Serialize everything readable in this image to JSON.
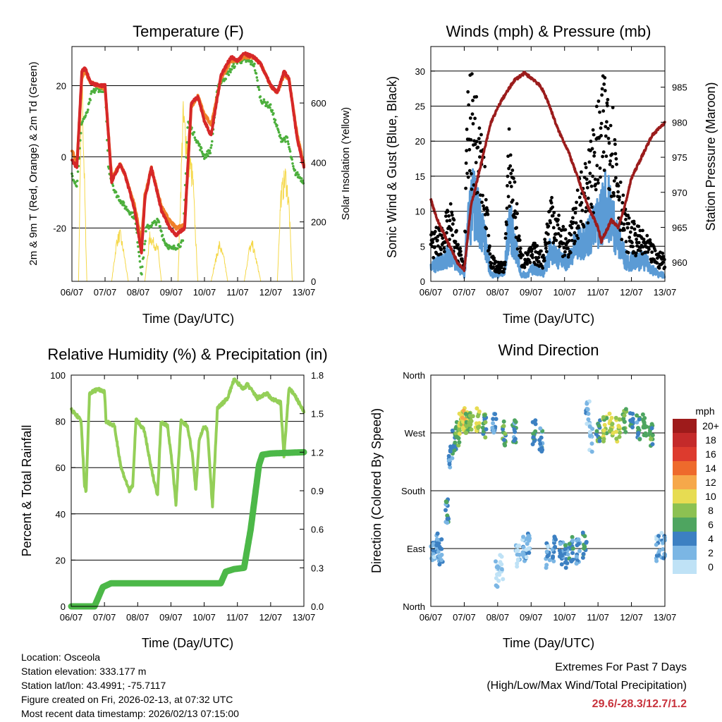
{
  "colors": {
    "temp2m": "#d62728",
    "temp9m": "#f07f28",
    "dewpoint": "#4caf3c",
    "solar": "#f5d84a",
    "gust": "#000000",
    "sonic": "#5b9bd5",
    "pressure": "#9b1c1c",
    "rh": "#94cf58",
    "precip": "#4cb848",
    "extremes": "#c8323c"
  },
  "icons": {
    "scatter_marker": "filled-circle"
  },
  "footer": {
    "location": "Location: Osceola",
    "elevation": "Station elevation: 333.177 m",
    "latlon": "Station lat/lon: 43.4991; -75.7117",
    "created": "Figure created on Fri, 2026-02-13, at 07:32 UTC",
    "recent": "Most recent data timestamp: 2026/02/13 07:15:00"
  },
  "extremes": {
    "title": "Extremes For Past 7 Days",
    "subtitle": "(High/Low/Max Wind/Total Precipitation)",
    "values": "29.6/-28.3/12.7/1.2"
  },
  "chart_data": [
    {
      "id": "temp",
      "type": "line",
      "title": "Temperature (F)",
      "xlabel": "Time (Day/UTC)",
      "ylabel": "2m & 9m T (Red, Orange) & 2m Td (Green)",
      "y2label": "Solar Insolation (Yellow)",
      "xlim": [
        0,
        7
      ],
      "xticks": [
        "06/07",
        "07/07",
        "08/07",
        "09/07",
        "10/07",
        "11/07",
        "12/07",
        "13/07"
      ],
      "ylim": [
        -35,
        31
      ],
      "yticks": [
        -20,
        0,
        20
      ],
      "gridlines": [
        -20,
        0,
        20
      ],
      "y2lim": [
        0,
        790
      ],
      "y2ticks": [
        0,
        200,
        400,
        600
      ],
      "series": [
        {
          "name": "2m T",
          "style": "line",
          "x": [
            0,
            0.15,
            0.3,
            0.4,
            0.55,
            0.8,
            1.0,
            1.2,
            1.45,
            1.6,
            1.9,
            2.1,
            2.2,
            2.4,
            2.7,
            2.95,
            3.15,
            3.4,
            3.6,
            3.8,
            4.0,
            4.2,
            4.5,
            4.8,
            5.0,
            5.2,
            5.5,
            5.7,
            6.0,
            6.2,
            6.4,
            6.55,
            6.8,
            7.0
          ],
          "values": [
            -1,
            -3,
            24,
            25,
            21,
            20,
            20,
            -7,
            -2,
            -5,
            -15,
            -27,
            -12,
            -3,
            -15,
            -20,
            -22,
            -20,
            15,
            17,
            10,
            6,
            23,
            28,
            27,
            29,
            28,
            26,
            20,
            18,
            24,
            22,
            5,
            -3
          ]
        },
        {
          "name": "9m T",
          "style": "line",
          "x": [
            0,
            0.15,
            0.3,
            0.4,
            0.55,
            0.8,
            1.0,
            1.2,
            1.45,
            1.6,
            1.9,
            2.1,
            2.2,
            2.4,
            2.7,
            2.95,
            3.15,
            3.4,
            3.6,
            3.8,
            4.0,
            4.2,
            4.5,
            4.8,
            5.0,
            5.2,
            5.5,
            5.7,
            6.0,
            6.2,
            6.4,
            6.55,
            6.8,
            7.0
          ],
          "values": [
            2,
            -2,
            22,
            24,
            21,
            20,
            19,
            -6,
            -2,
            -5,
            -14,
            -24,
            -11,
            -3,
            -14,
            -18,
            -20,
            -19,
            14,
            17,
            12,
            9,
            22,
            27,
            27,
            28,
            28,
            26,
            20,
            18,
            23,
            22,
            6,
            -2
          ]
        },
        {
          "name": "2m Td",
          "style": "line",
          "x": [
            0,
            0.15,
            0.3,
            0.45,
            0.6,
            0.75,
            1.0,
            1.1,
            1.3,
            1.6,
            1.9,
            2.1,
            2.25,
            2.6,
            2.8,
            3.0,
            3.2,
            3.35,
            3.5,
            3.7,
            4.0,
            4.2,
            4.4,
            4.6,
            5.0,
            5.3,
            5.5,
            5.7,
            6.0,
            6.3,
            6.5,
            6.7,
            6.9,
            7.0
          ],
          "values": [
            -5,
            -8,
            10,
            12,
            18,
            19,
            19,
            -3,
            -10,
            -14,
            -17,
            -33,
            -20,
            -18,
            -24,
            -26,
            -25,
            -24,
            10,
            6,
            0,
            2,
            20,
            22,
            27,
            27,
            26,
            16,
            14,
            5,
            5,
            -4,
            -6,
            -7
          ]
        },
        {
          "name": "Solar",
          "style": "filled",
          "axis": "y2",
          "x": [
            0,
            0.2,
            0.3,
            0.45,
            0.6,
            1.2,
            1.35,
            1.45,
            1.55,
            1.7,
            2.2,
            2.35,
            2.45,
            2.6,
            2.7,
            3.2,
            3.35,
            3.5,
            3.65,
            3.8,
            4.2,
            4.3,
            4.45,
            4.6,
            4.7,
            5.2,
            5.35,
            5.45,
            5.6,
            5.7,
            6.2,
            6.3,
            6.45,
            6.55,
            6.65,
            7.0
          ],
          "values": [
            0,
            0,
            790,
            0,
            0,
            0,
            150,
            180,
            120,
            0,
            0,
            170,
            150,
            120,
            0,
            0,
            620,
            500,
            380,
            0,
            0,
            60,
            140,
            80,
            0,
            0,
            120,
            140,
            60,
            0,
            0,
            320,
            400,
            290,
            0,
            0
          ]
        }
      ]
    },
    {
      "id": "wind",
      "type": "scatter",
      "title": "Winds (mph) & Pressure (mb)",
      "xlabel": "Time (Day/UTC)",
      "ylabel": "Sonic Wind & Gust (Blue, Black)",
      "y2label": "Station Pressure (Maroon)",
      "xlim": [
        0,
        7
      ],
      "xticks": [
        "06/07",
        "07/07",
        "08/07",
        "09/07",
        "10/07",
        "11/07",
        "12/07",
        "13/07"
      ],
      "ylim": [
        0,
        33.5
      ],
      "yticks": [
        0,
        5,
        10,
        15,
        20,
        25,
        30
      ],
      "gridlines": [
        5,
        10,
        15,
        20,
        25,
        30
      ],
      "y2lim": [
        957.3,
        990.8
      ],
      "y2ticks": [
        960,
        965,
        970,
        975,
        980,
        985
      ],
      "series": [
        {
          "name": "Gust",
          "style": "scatter",
          "x": [
            0,
            0.3,
            0.6,
            0.85,
            1.0,
            1.1,
            1.25,
            1.4,
            1.55,
            1.8,
            1.95,
            2.2,
            2.35,
            2.7,
            2.85,
            3.1,
            3.35,
            3.6,
            3.9,
            4.1,
            4.3,
            4.5,
            4.75,
            4.9,
            5.1,
            5.25,
            5.4,
            5.55,
            5.7,
            5.85,
            6.1,
            6.4,
            6.6,
            6.8,
            7.0
          ],
          "values": [
            5,
            6,
            8,
            4,
            2,
            20,
            22,
            18,
            15,
            3,
            2,
            2,
            17,
            3,
            3,
            4,
            3,
            10,
            6,
            5,
            8,
            12,
            14,
            17,
            20,
            23,
            20,
            16,
            10,
            7,
            6,
            5,
            4,
            3,
            3
          ]
        },
        {
          "name": "Sonic",
          "style": "scatter",
          "x": [
            0,
            0.3,
            0.6,
            0.85,
            1.0,
            1.1,
            1.25,
            1.4,
            1.55,
            1.8,
            1.95,
            2.2,
            2.35,
            2.7,
            2.85,
            3.1,
            3.35,
            3.6,
            3.9,
            4.1,
            4.3,
            4.5,
            4.75,
            4.9,
            5.1,
            5.25,
            5.4,
            5.55,
            5.7,
            5.85,
            6.1,
            6.4,
            6.6,
            6.8,
            7.0
          ],
          "values": [
            2,
            3,
            4,
            2,
            1,
            8,
            12,
            10,
            8,
            1,
            1,
            1,
            9,
            1,
            1,
            2,
            1,
            5,
            3,
            3,
            5,
            6,
            7,
            8,
            10,
            12,
            10,
            7,
            5,
            3,
            3,
            3,
            2,
            1,
            1
          ]
        },
        {
          "name": "Pressure",
          "style": "line",
          "axis": "y2",
          "x": [
            0,
            0.2,
            0.5,
            0.8,
            1.0,
            1.2,
            1.5,
            1.8,
            2.1,
            2.5,
            2.8,
            3.1,
            3.3,
            3.5,
            3.8,
            4.1,
            4.4,
            4.7,
            5.0,
            5.1,
            5.2,
            5.4,
            5.6,
            5.8,
            6.0,
            6.3,
            6.6,
            6.8,
            7.0
          ],
          "values": [
            969,
            966,
            963,
            960,
            959,
            968,
            974,
            980,
            983,
            986,
            987,
            986,
            985,
            983,
            979,
            976,
            972,
            968,
            965,
            963,
            964,
            966,
            965,
            968,
            972,
            975,
            978,
            979,
            980
          ]
        }
      ]
    },
    {
      "id": "rh",
      "type": "line",
      "title": "Relative Humidity (%) & Precipitation (in)",
      "xlabel": "Time (Day/UTC)",
      "ylabel": "Percent & Total Rainfall",
      "xlim": [
        0,
        7
      ],
      "xticks": [
        "06/07",
        "07/07",
        "08/07",
        "09/07",
        "10/07",
        "11/07",
        "12/07",
        "13/07"
      ],
      "ylim": [
        0,
        100
      ],
      "yticks": [
        0,
        20,
        40,
        60,
        80,
        100
      ],
      "gridlines": [
        20,
        40,
        60,
        80
      ],
      "y2lim": [
        0,
        1.8
      ],
      "y2ticks": [
        "0.0",
        "0.3",
        "0.6",
        "0.9",
        "1.2",
        "1.5",
        "1.8"
      ],
      "series": [
        {
          "name": "RH",
          "style": "line",
          "x": [
            0,
            0.2,
            0.3,
            0.4,
            0.45,
            0.55,
            0.8,
            1.0,
            1.05,
            1.3,
            1.5,
            1.75,
            1.85,
            1.95,
            2.2,
            2.4,
            2.6,
            2.7,
            2.9,
            3.05,
            3.15,
            3.3,
            3.5,
            3.65,
            3.75,
            3.85,
            4.0,
            4.1,
            4.25,
            4.4,
            4.5,
            4.7,
            4.9,
            5.2,
            5.3,
            5.6,
            5.9,
            6.0,
            6.3,
            6.4,
            6.55,
            6.7,
            6.85,
            7.0
          ],
          "values": [
            85,
            82,
            80,
            52,
            50,
            92,
            94,
            93,
            80,
            78,
            60,
            50,
            52,
            81,
            76,
            60,
            48,
            80,
            78,
            60,
            44,
            80,
            78,
            65,
            50,
            72,
            78,
            76,
            43,
            86,
            87,
            90,
            98,
            94,
            96,
            90,
            92,
            90,
            88,
            65,
            94,
            92,
            88,
            84
          ]
        },
        {
          "name": "Precip",
          "style": "line",
          "axis": "y2",
          "x": [
            0,
            0.7,
            0.95,
            1.2,
            2.5,
            4.5,
            4.65,
            4.9,
            5.2,
            5.3,
            5.4,
            5.55,
            5.65,
            5.75,
            6.0,
            7.0
          ],
          "values": [
            0,
            0,
            0.15,
            0.18,
            0.18,
            0.18,
            0.27,
            0.29,
            0.3,
            0.45,
            0.6,
            0.9,
            1.1,
            1.18,
            1.19,
            1.2
          ]
        }
      ]
    },
    {
      "id": "dir",
      "type": "scatter",
      "title": "Wind Direction",
      "xlabel": "Time (Day/UTC)",
      "ylabel": "Direction (Colored By Speed)",
      "xlim": [
        0,
        7
      ],
      "xticks": [
        "06/07",
        "07/07",
        "08/07",
        "09/07",
        "10/07",
        "11/07",
        "12/07",
        "13/07"
      ],
      "ylim": [
        0,
        360
      ],
      "ylabels": [
        "North",
        "East",
        "South",
        "West",
        "North"
      ],
      "yvalues": [
        0,
        90,
        180,
        270,
        360
      ],
      "gridlines": [
        90,
        180,
        270
      ],
      "legend": {
        "title": "mph",
        "labels": [
          "20+",
          "18",
          "16",
          "14",
          "12",
          "10",
          "8",
          "6",
          "4",
          "2",
          "0"
        ],
        "colors": [
          "#9e1b1b",
          "#c42a2a",
          "#dd3b2e",
          "#ee6a2c",
          "#f6a84a",
          "#e7dc52",
          "#8cc152",
          "#4ea560",
          "#3c80c2",
          "#7bb6e4",
          "#bfe2f6"
        ]
      },
      "series": [
        {
          "name": "Direction",
          "style": "scatter",
          "x": [
            0.05,
            0.2,
            0.3,
            0.5,
            0.6,
            0.7,
            0.8,
            0.9,
            1.0,
            1.1,
            1.2,
            1.4,
            1.6,
            1.9,
            2.0,
            2.1,
            2.2,
            2.5,
            2.6,
            2.8,
            2.9,
            3.1,
            3.3,
            3.5,
            3.7,
            3.9,
            4.05,
            4.2,
            4.4,
            4.6,
            4.7,
            4.8,
            5.0,
            5.2,
            5.4,
            5.6,
            5.8,
            6.0,
            6.2,
            6.4,
            6.6,
            6.8,
            6.95
          ],
          "values": [
            90,
            95,
            85,
            150,
            230,
            260,
            270,
            280,
            290,
            285,
            285,
            290,
            280,
            280,
            50,
            60,
            270,
            275,
            80,
            90,
            95,
            270,
            260,
            80,
            90,
            85,
            80,
            90,
            85,
            95,
            300,
            260,
            275,
            275,
            280,
            275,
            290,
            285,
            280,
            285,
            270,
            90,
            95
          ],
          "speed": [
            2,
            3,
            3,
            4,
            4,
            5,
            7,
            9,
            10,
            8,
            7,
            9,
            6,
            3,
            1,
            1,
            6,
            4,
            1,
            2,
            2,
            5,
            4,
            2,
            3,
            3,
            4,
            4,
            3,
            5,
            2,
            2,
            6,
            8,
            10,
            9,
            7,
            5,
            4,
            6,
            6,
            2,
            2
          ]
        }
      ]
    }
  ]
}
